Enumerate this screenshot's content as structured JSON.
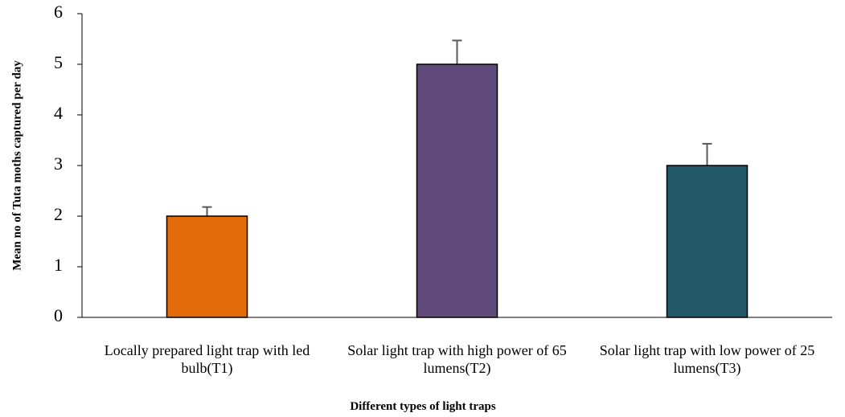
{
  "chart_data": {
    "type": "bar",
    "x_label": "Different types of light traps",
    "y_label": "Mean no of Tuta moths captured per day",
    "categories": [
      "Locally prepared light trap with led bulb(T1)",
      "Solar light trap with high power of 65 lumens(T2)",
      "Solar light trap with low power of 25 lumens(T3)"
    ],
    "values": [
      2,
      5,
      3
    ],
    "errors": [
      0.18,
      0.47,
      0.43
    ],
    "colors": [
      "#e36c0a",
      "#604a7b",
      "#215968"
    ],
    "ylim": [
      0,
      6
    ],
    "yticks": [
      0,
      1,
      2,
      3,
      4,
      5,
      6
    ],
    "grid": false
  }
}
